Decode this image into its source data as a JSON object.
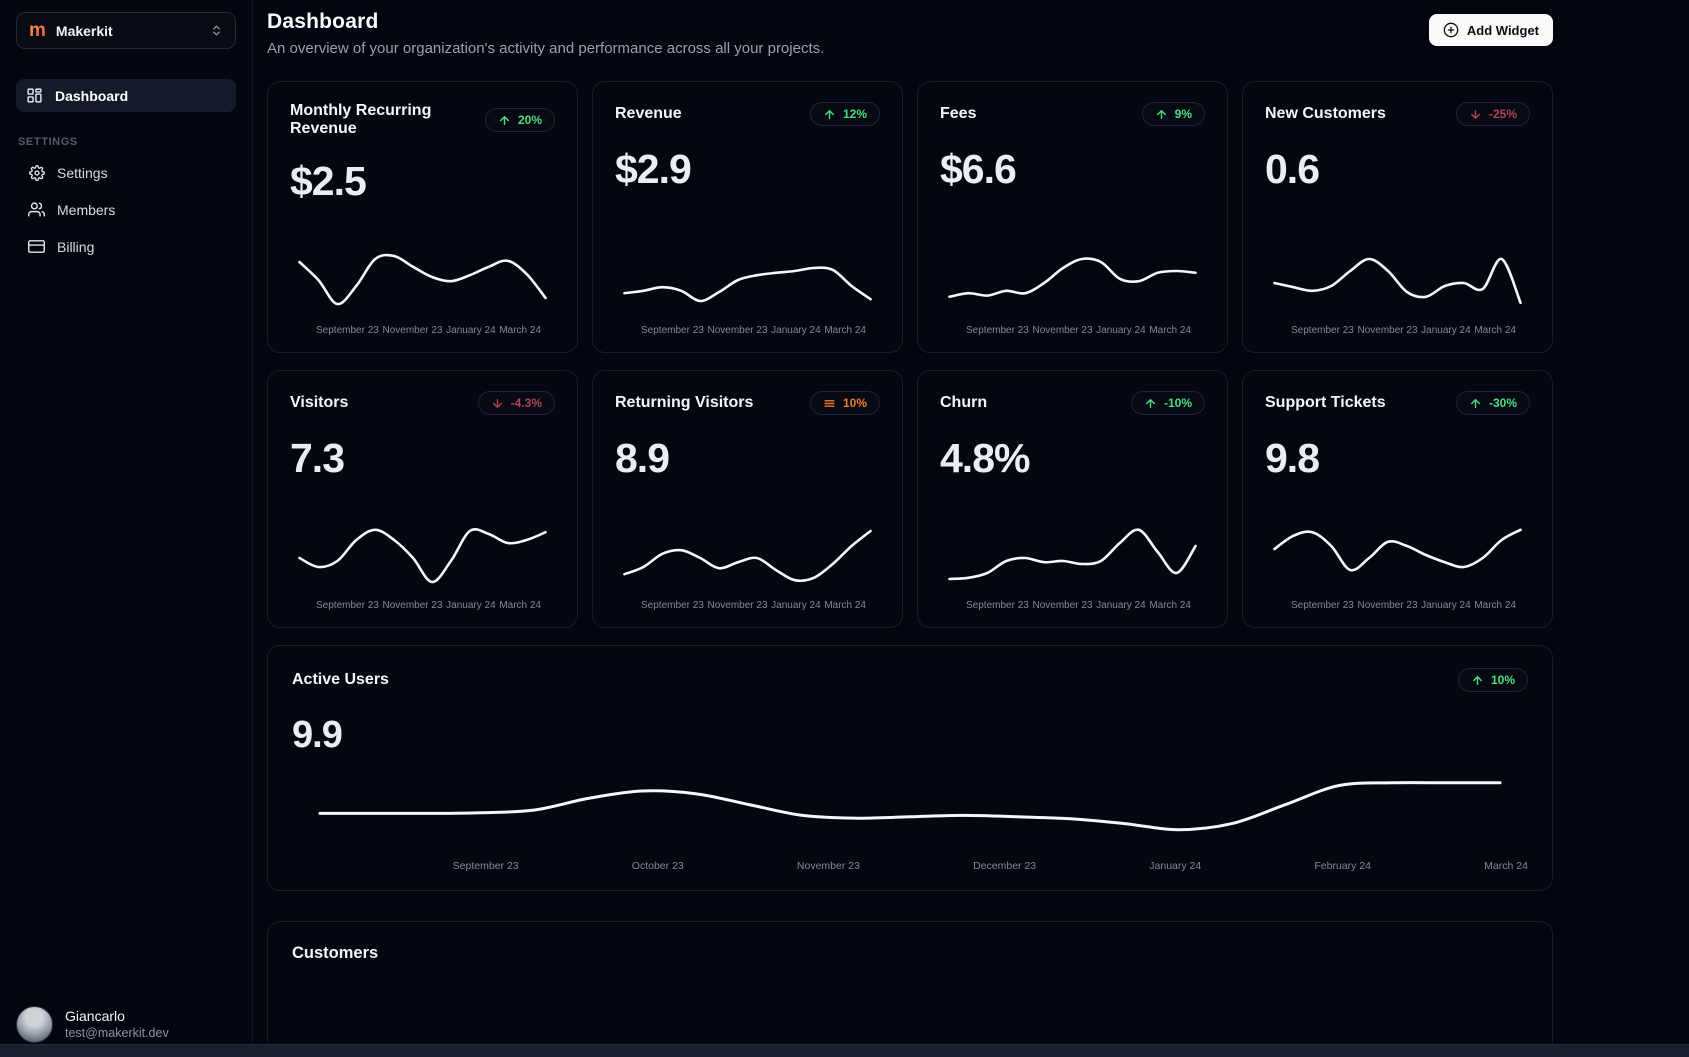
{
  "sidebar": {
    "brand": {
      "name": "Makerkit",
      "logo_letter": "m"
    },
    "nav_dashboard": {
      "label": "Dashboard",
      "active": true
    },
    "section_label": "SETTINGS",
    "settings_nav": [
      {
        "label": "Settings",
        "icon": "gear-icon"
      },
      {
        "label": "Members",
        "icon": "users-icon"
      },
      {
        "label": "Billing",
        "icon": "credit-card-icon"
      }
    ],
    "profile": {
      "name": "Giancarlo",
      "email": "test@makerkit.dev"
    }
  },
  "header": {
    "title": "Dashboard",
    "subtitle": "An overview of your organization's activity and performance across all your projects.",
    "add_widget_label": "Add Widget"
  },
  "colors": {
    "positive": "#4ade80",
    "negative": "#b04355",
    "warning": "#ea7c2c",
    "line": "#f5f7fa",
    "brand_orange": "#f4743f"
  },
  "small_card_x_labels": [
    "September 23",
    "November 23",
    "January 24",
    "March 24"
  ],
  "cards": [
    {
      "title": "Monthly Recurring Revenue",
      "value": "$2.5",
      "trend": {
        "icon": "arrow-up",
        "label": "20%",
        "tone": "positive"
      },
      "spark": [
        0.2,
        0.5,
        0.9,
        0.6,
        0.15,
        0.1,
        0.28,
        0.45,
        0.52,
        0.42,
        0.28,
        0.18,
        0.4,
        0.8
      ]
    },
    {
      "title": "Revenue",
      "value": "$2.9",
      "trend": {
        "icon": "arrow-up",
        "label": "12%",
        "tone": "positive"
      },
      "spark": [
        0.72,
        0.68,
        0.62,
        0.68,
        0.85,
        0.7,
        0.5,
        0.42,
        0.38,
        0.35,
        0.3,
        0.33,
        0.6,
        0.82
      ]
    },
    {
      "title": "Fees",
      "value": "$6.6",
      "trend": {
        "icon": "arrow-up",
        "label": "9%",
        "tone": "positive"
      },
      "spark": [
        0.78,
        0.72,
        0.76,
        0.68,
        0.72,
        0.55,
        0.3,
        0.15,
        0.2,
        0.48,
        0.52,
        0.38,
        0.35,
        0.38
      ]
    },
    {
      "title": "New Customers",
      "value": "0.6",
      "trend": {
        "icon": "arrow-down",
        "label": "-25%",
        "tone": "negative"
      },
      "spark": [
        0.55,
        0.62,
        0.68,
        0.6,
        0.35,
        0.15,
        0.35,
        0.7,
        0.78,
        0.6,
        0.55,
        0.65,
        0.15,
        0.88
      ]
    },
    {
      "title": "Visitors",
      "value": "7.3",
      "trend": {
        "icon": "arrow-down",
        "label": "-4.3%",
        "tone": "negative"
      },
      "spark": [
        0.55,
        0.7,
        0.6,
        0.25,
        0.08,
        0.25,
        0.55,
        0.95,
        0.6,
        0.1,
        0.15,
        0.3,
        0.25,
        0.12
      ]
    },
    {
      "title": "Returning Visitors",
      "value": "8.9",
      "trend": {
        "icon": "equals",
        "label": "10%",
        "tone": "warning"
      },
      "spark": [
        0.82,
        0.7,
        0.48,
        0.42,
        0.55,
        0.72,
        0.62,
        0.55,
        0.75,
        0.92,
        0.88,
        0.65,
        0.35,
        0.1
      ]
    },
    {
      "title": "Churn",
      "value": "4.8%",
      "trend": {
        "icon": "arrow-up",
        "label": "-10%",
        "tone": "positive"
      },
      "spark": [
        0.9,
        0.88,
        0.8,
        0.6,
        0.55,
        0.62,
        0.6,
        0.65,
        0.6,
        0.3,
        0.08,
        0.45,
        0.8,
        0.35
      ]
    },
    {
      "title": "Support Tickets",
      "value": "9.8",
      "trend": {
        "icon": "arrow-up",
        "label": "-30%",
        "tone": "positive"
      },
      "spark": [
        0.4,
        0.18,
        0.12,
        0.35,
        0.75,
        0.55,
        0.28,
        0.35,
        0.5,
        0.62,
        0.7,
        0.55,
        0.25,
        0.08
      ]
    }
  ],
  "active_users": {
    "title": "Active Users",
    "value": "9.9",
    "trend": {
      "icon": "arrow-up",
      "label": "10%",
      "tone": "positive"
    },
    "x_labels": [
      "September 23",
      "October 23",
      "November 23",
      "December 23",
      "January 24",
      "February 24",
      "March 24"
    ],
    "spark": [
      0.55,
      0.55,
      0.55,
      0.54,
      0.5,
      0.33,
      0.22,
      0.26,
      0.42,
      0.58,
      0.62,
      0.6,
      0.58,
      0.6,
      0.63,
      0.7,
      0.79,
      0.7,
      0.42,
      0.14,
      0.1,
      0.1,
      0.1
    ]
  },
  "customers": {
    "title": "Customers"
  }
}
